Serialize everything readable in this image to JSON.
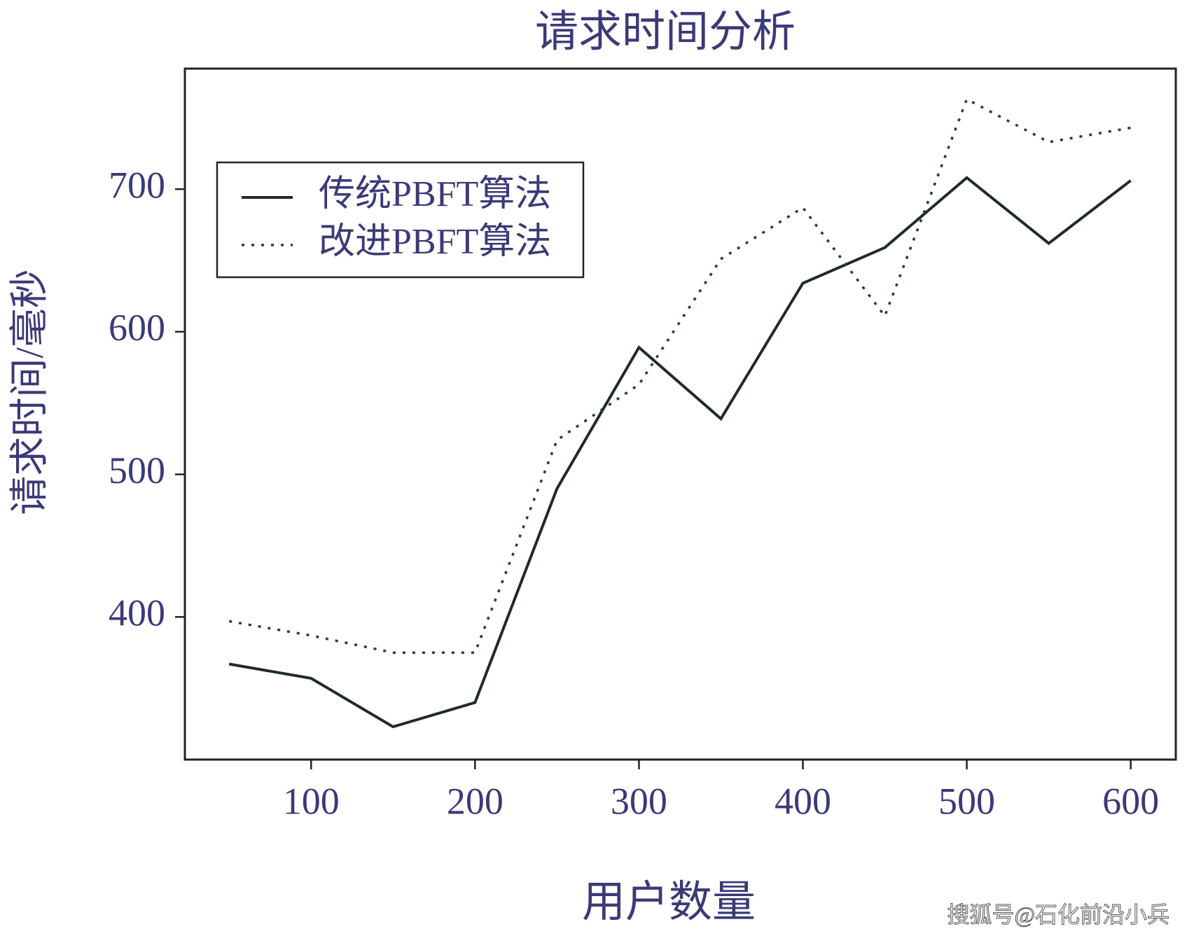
{
  "chart_data": {
    "type": "line",
    "title": "请求时间分析",
    "x_label": "用户数量",
    "y_label": "请求时间/毫秒",
    "x": [
      50,
      100,
      150,
      200,
      250,
      300,
      350,
      400,
      450,
      500,
      550,
      600
    ],
    "series": [
      {
        "name": "传统PBFT算法",
        "color": "#1f2b2b",
        "dash": "solid",
        "values": [
          367,
          357,
          323,
          340,
          490,
          589,
          539,
          634,
          659,
          708,
          662,
          706
        ]
      },
      {
        "name": "改进PBFT算法",
        "color": "#2b3a3a",
        "dash": "dotted",
        "values": [
          397,
          387,
          375,
          375,
          524,
          563,
          651,
          687,
          611,
          763,
          733,
          743
        ]
      }
    ],
    "xlim": [
      23,
      627.5
    ],
    "ylim": [
      300,
      784.5
    ],
    "xticks": [
      100,
      200,
      300,
      400,
      500,
      600
    ],
    "yticks": [
      400,
      500,
      600,
      700
    ],
    "legend": "upper left",
    "grid": false,
    "watermark": "搜狐号@石化前沿小兵"
  }
}
